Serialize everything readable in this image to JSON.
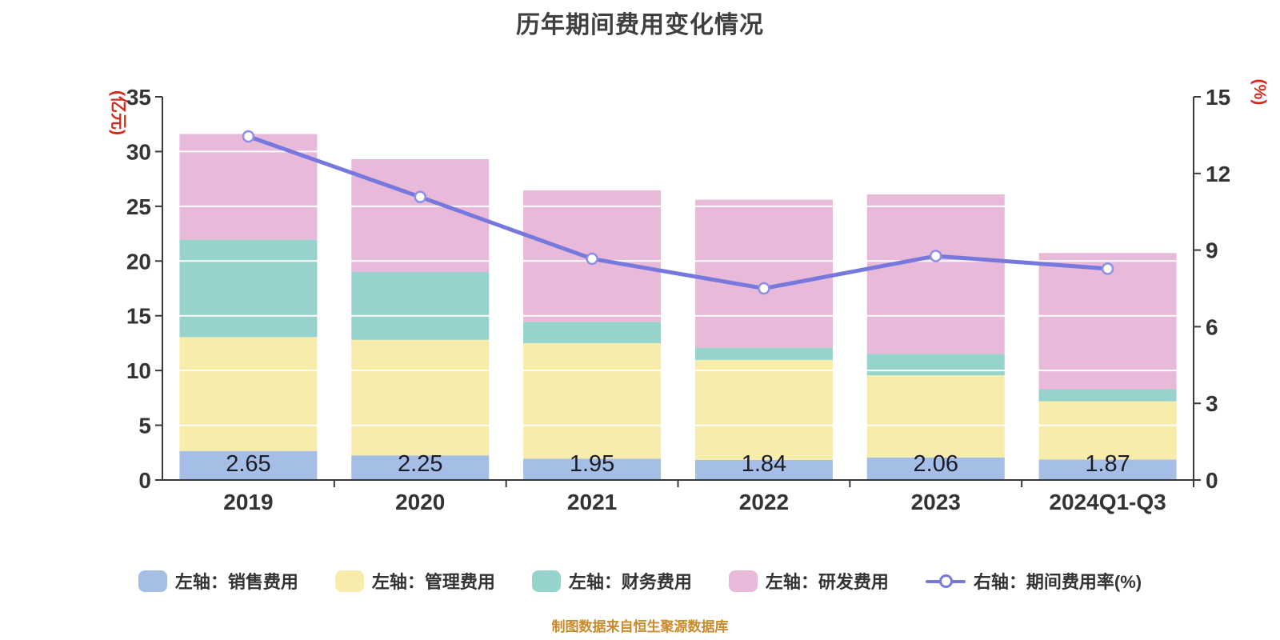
{
  "chart_data": {
    "type": "bar+line",
    "title": "历年期间费用变化情况",
    "categories": [
      "2019",
      "2020",
      "2021",
      "2022",
      "2023",
      "2024Q1-Q3"
    ],
    "bar_series": [
      {
        "key": "sales",
        "name": "左轴：销售费用",
        "color": "#A4BEE6",
        "values": [
          2.65,
          2.25,
          1.95,
          1.84,
          2.06,
          1.87
        ]
      },
      {
        "key": "admin",
        "name": "左轴：管理费用",
        "color": "#F8ECAA",
        "values": [
          10.4,
          10.55,
          10.55,
          9.13,
          7.5,
          5.32
        ]
      },
      {
        "key": "finance",
        "name": "左轴：财务费用",
        "color": "#96D3CC",
        "values": [
          8.9,
          6.2,
          1.95,
          1.1,
          1.95,
          1.1
        ]
      },
      {
        "key": "rd",
        "name": "左轴：研发费用",
        "color": "#E8B9D8",
        "values": [
          9.65,
          10.3,
          12.0,
          13.53,
          14.58,
          12.44
        ]
      }
    ],
    "line_series": {
      "key": "expense-ratio",
      "name": "右轴：期间费用率(%)",
      "color": "#7678DE",
      "marker_stroke": "#8B90E6",
      "values": [
        13.45,
        11.08,
        8.66,
        7.5,
        8.77,
        8.27
      ]
    },
    "bar_value_labels": [
      "2.65",
      "2.25",
      "1.95",
      "1.84",
      "2.06",
      "1.87"
    ],
    "left_axis": {
      "unit_label": "(亿元)",
      "min": 0,
      "max": 35,
      "step": 5,
      "tick_labels": [
        "0",
        "5",
        "10",
        "15",
        "20",
        "25",
        "30",
        "35"
      ]
    },
    "right_axis": {
      "unit_label": "(%)",
      "min": 0,
      "max": 15,
      "step": 3,
      "tick_labels": [
        "0",
        "3",
        "6",
        "9",
        "12",
        "15"
      ]
    },
    "grid": true,
    "legend_position": "bottom"
  },
  "source_note": "制图数据来自恒生聚源数据库",
  "style": {
    "background": "#FFFFFF",
    "title_color": "#3F3F3F",
    "axis_line_color": "#3A3A3A",
    "grid_color": "#FFFFFF",
    "tick_label_color": "#333333",
    "unit_label_color": "#D52B1E",
    "value_label_color": "#1C1C28",
    "legend_text_color": "#333333",
    "source_note_color": "#CA8A2B"
  }
}
